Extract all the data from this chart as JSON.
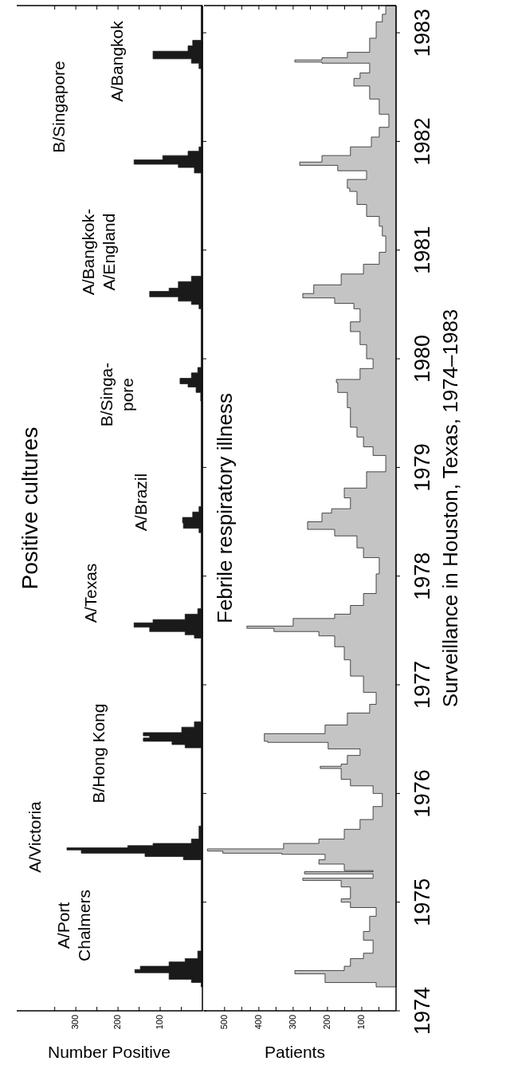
{
  "chart_data": [
    {
      "type": "area",
      "orientation": "horizontal",
      "title": "Positive cultures",
      "xlabel": "Number Positive",
      "tick_labels": "x",
      "color": "#1a1a1a",
      "x": [
        1974.22,
        1974.26,
        1974.29,
        1974.35,
        1974.38,
        1974.41,
        1974.45,
        1974.48,
        1974.55,
        1975.39,
        1975.42,
        1975.45,
        1975.48,
        1975.5,
        1975.52,
        1975.54,
        1975.58,
        1975.7,
        1976.42,
        1976.45,
        1976.48,
        1976.51,
        1976.53,
        1976.56,
        1976.61,
        1976.66,
        1977.43,
        1977.46,
        1977.49,
        1977.53,
        1977.57,
        1977.6,
        1977.65,
        1977.7,
        1978.4,
        1978.44,
        1978.49,
        1978.54,
        1978.59,
        1978.64,
        1979.61,
        1979.69,
        1979.74,
        1979.77,
        1979.82,
        1979.87,
        1979.92,
        1980.46,
        1980.5,
        1980.53,
        1980.57,
        1980.62,
        1980.65,
        1980.71,
        1980.76,
        1981.71,
        1981.76,
        1981.79,
        1981.83,
        1981.87,
        1981.91,
        1981.95,
        1982.67,
        1982.72,
        1982.76,
        1982.83,
        1982.88,
        1982.93,
        1983.25
      ],
      "values": [
        3,
        26,
        79,
        160,
        147,
        79,
        41,
        11,
        3,
        45,
        136,
        287,
        321,
        177,
        117,
        26,
        8,
        3,
        41,
        72,
        140,
        125,
        140,
        49,
        19,
        3,
        19,
        41,
        125,
        162,
        117,
        41,
        11,
        3,
        8,
        45,
        47,
        23,
        8,
        3,
        4,
        15,
        34,
        53,
        26,
        11,
        3,
        8,
        26,
        57,
        125,
        79,
        57,
        26,
        3,
        19,
        57,
        162,
        94,
        34,
        8,
        3,
        8,
        26,
        117,
        34,
        23,
        3,
        3
      ],
      "ylim": [
        1974,
        1983.25
      ],
      "yticks": [
        1974,
        1975,
        1976,
        1977,
        1978,
        1979,
        1980,
        1981,
        1982,
        1983
      ],
      "xlim": [
        440,
        0
      ],
      "xticks": [
        {
          "value": 50,
          "label": null
        },
        100,
        {
          "value": 150,
          "label": null
        },
        200,
        {
          "value": 250,
          "label": null
        },
        300,
        {
          "value": 350,
          "label": null
        }
      ],
      "annotations": [
        "A/Port\nChalmers",
        "A/Victoria",
        "B/Hong Kong",
        "A/Texas",
        "A/Brazil",
        "B/Singa-\npore",
        "A/Bangkok-\nA/England",
        "B/Singapore",
        "A/Bangkok"
      ]
    },
    {
      "type": "area",
      "orientation": "horizontal",
      "title": "Febrile respiratory illness",
      "xlabel": "Patients",
      "ylabel": "Surveillance in Houston, Texas, 1974–1983",
      "color": "#c4c4c4",
      "x": [
        1974.22,
        1974.26,
        1974.34,
        1974.37,
        1974.41,
        1974.48,
        1974.53,
        1974.65,
        1974.73,
        1974.87,
        1974.95,
        1975.0,
        1975.03,
        1975.14,
        1975.2,
        1975.22,
        1975.26,
        1975.28,
        1975.29,
        1975.35,
        1975.39,
        1975.44,
        1975.45,
        1975.47,
        1975.49,
        1975.54,
        1975.58,
        1975.67,
        1975.76,
        1975.88,
        1976.0,
        1976.07,
        1976.13,
        1976.23,
        1976.25,
        1976.27,
        1976.35,
        1976.41,
        1976.47,
        1976.48,
        1976.55,
        1976.63,
        1976.74,
        1976.82,
        1976.93,
        1977.08,
        1977.23,
        1977.35,
        1977.45,
        1977.49,
        1977.52,
        1977.54,
        1977.61,
        1977.65,
        1977.73,
        1977.84,
        1978.02,
        1978.17,
        1978.26,
        1978.37,
        1978.43,
        1978.5,
        1978.58,
        1978.62,
        1978.72,
        1978.81,
        1978.96,
        1979.11,
        1979.19,
        1979.28,
        1979.37,
        1979.55,
        1979.69,
        1979.78,
        1979.81,
        1979.91,
        1980.0,
        1980.13,
        1980.25,
        1980.34,
        1980.46,
        1980.51,
        1980.56,
        1980.6,
        1980.68,
        1980.78,
        1980.87,
        1980.98,
        1981.13,
        1981.22,
        1981.31,
        1981.42,
        1981.54,
        1981.57,
        1981.65,
        1981.73,
        1981.78,
        1981.81,
        1981.87,
        1981.95,
        1982.04,
        1982.13,
        1982.25,
        1982.39,
        1982.51,
        1982.58,
        1982.63,
        1982.72,
        1982.73,
        1982.75,
        1982.77,
        1982.82,
        1982.95,
        1983.1,
        1983.17,
        1983.25
      ],
      "values": [
        58,
        207,
        295,
        151,
        133,
        95,
        67,
        95,
        77,
        58,
        133,
        160,
        133,
        160,
        272,
        67,
        267,
        67,
        151,
        225,
        207,
        333,
        505,
        550,
        328,
        225,
        151,
        105,
        67,
        40,
        67,
        133,
        160,
        221,
        160,
        142,
        105,
        198,
        374,
        384,
        207,
        142,
        77,
        58,
        95,
        133,
        151,
        179,
        225,
        356,
        435,
        300,
        179,
        133,
        95,
        58,
        49,
        95,
        114,
        179,
        258,
        216,
        188,
        133,
        151,
        86,
        30,
        67,
        95,
        114,
        133,
        142,
        170,
        174,
        105,
        67,
        86,
        105,
        133,
        105,
        123,
        179,
        272,
        240,
        160,
        95,
        49,
        30,
        40,
        49,
        86,
        114,
        135,
        142,
        86,
        170,
        281,
        216,
        133,
        72,
        49,
        21,
        49,
        77,
        123,
        105,
        77,
        216,
        295,
        216,
        142,
        77,
        58,
        40,
        30,
        30
      ],
      "ylim": [
        1974,
        1983.25
      ],
      "yticks": [
        1974,
        1975,
        1976,
        1977,
        1978,
        1979,
        1980,
        1981,
        1982,
        1983
      ],
      "xlim": [
        560,
        0
      ],
      "xticks": [
        {
          "value": 50,
          "label": null
        },
        100,
        {
          "value": 150,
          "label": null
        },
        200,
        {
          "value": 250,
          "label": null
        },
        300,
        {
          "value": 350,
          "label": null
        },
        400,
        {
          "value": 450,
          "label": null
        },
        500
      ]
    }
  ]
}
